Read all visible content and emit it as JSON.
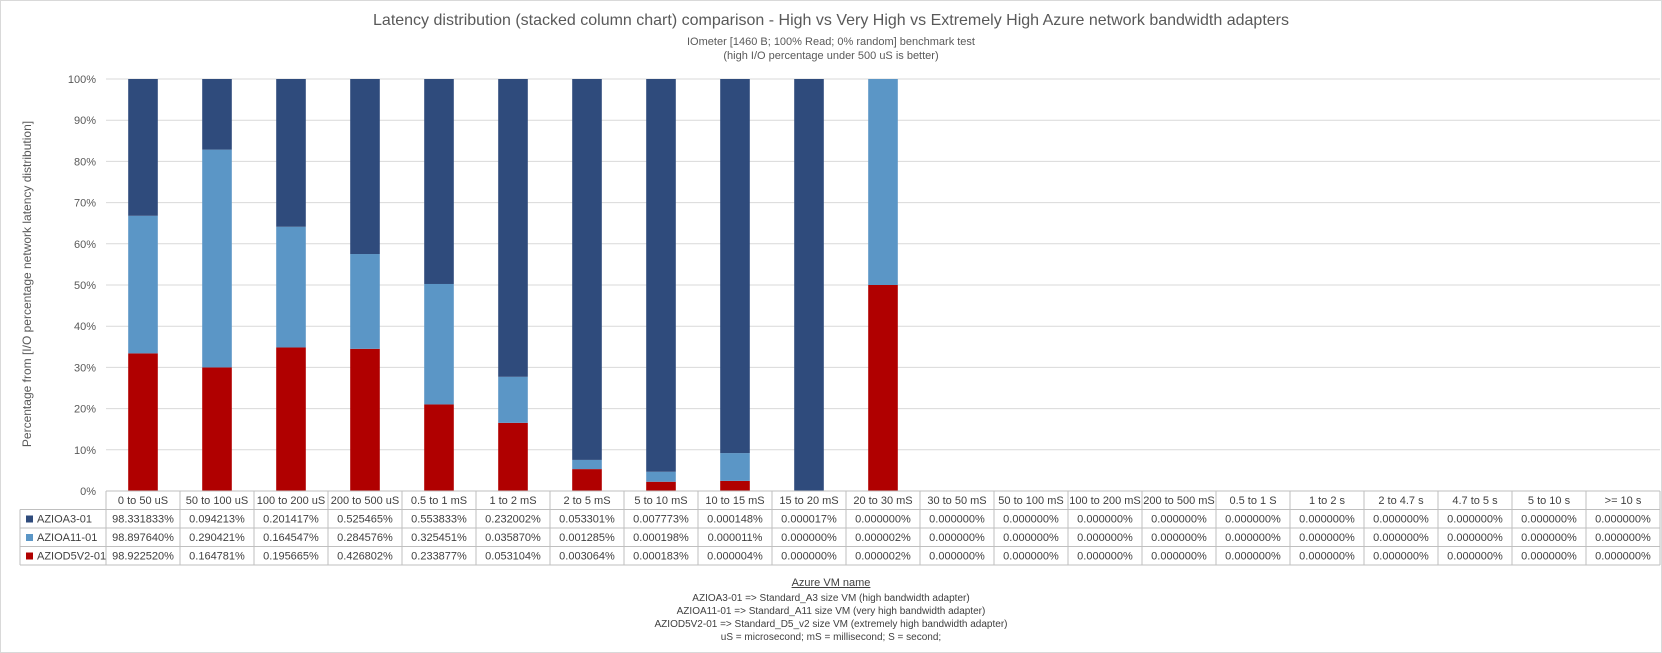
{
  "chart_data": {
    "type": "bar",
    "stacked": true,
    "normalized": "100%",
    "title": "Latency distribution (stacked column chart) comparison - High vs Very High vs Extremely High Azure network bandwidth adapters",
    "subtitle_lines": [
      "IOmeter [1460 B; 100% Read; 0% random] benchmark test",
      "(high I/O percentage under 500 uS is better)"
    ],
    "ylabel": "Percentage from [I/O percentage network latency distribution]",
    "xlabel": "Azure VM name",
    "ylim": [
      0,
      100
    ],
    "yticks": [
      "0%",
      "10%",
      "20%",
      "30%",
      "40%",
      "50%",
      "60%",
      "70%",
      "80%",
      "90%",
      "100%"
    ],
    "categories": [
      "0 to 50 uS",
      "50 to 100 uS",
      "100 to 200 uS",
      "200 to 500 uS",
      "0.5 to 1 mS",
      "1 to 2 mS",
      "2 to 5 mS",
      "5 to 10 mS",
      "10 to 15 mS",
      "15 to 20 mS",
      "20 to 30 mS",
      "30 to 50 mS",
      "50 to 100 mS",
      "100 to 200 mS",
      "200 to 500 mS",
      "0.5 to 1 S",
      "1 to 2 s",
      "2 to 4.7 s",
      "4.7 to 5 s",
      "5 to 10 s",
      ">= 10 s"
    ],
    "series": [
      {
        "name": "AZIOA3-01",
        "color": "#2f4b7c",
        "values": [
          98.331833,
          0.094213,
          0.201417,
          0.525465,
          0.553833,
          0.232002,
          0.053301,
          0.007773,
          0.000148,
          1.7e-05,
          0.0,
          0.0,
          0.0,
          0.0,
          0.0,
          0.0,
          0.0,
          0.0,
          0.0,
          0.0,
          0.0
        ],
        "labels": [
          "98.331833%",
          "0.094213%",
          "0.201417%",
          "0.525465%",
          "0.553833%",
          "0.232002%",
          "0.053301%",
          "0.007773%",
          "0.000148%",
          "0.000017%",
          "0.000000%",
          "0.000000%",
          "0.000000%",
          "0.000000%",
          "0.000000%",
          "0.000000%",
          "0.000000%",
          "0.000000%",
          "0.000000%",
          "0.000000%",
          "0.000000%"
        ]
      },
      {
        "name": "AZIOA11-01",
        "color": "#5b96c6",
        "values": [
          98.89764,
          0.290421,
          0.164547,
          0.284576,
          0.325451,
          0.03587,
          0.001285,
          0.000198,
          1.1e-05,
          0.0,
          2e-06,
          0.0,
          0.0,
          0.0,
          0.0,
          0.0,
          0.0,
          0.0,
          0.0,
          0.0,
          0.0
        ],
        "labels": [
          "98.897640%",
          "0.290421%",
          "0.164547%",
          "0.284576%",
          "0.325451%",
          "0.035870%",
          "0.001285%",
          "0.000198%",
          "0.000011%",
          "0.000000%",
          "0.000002%",
          "0.000000%",
          "0.000000%",
          "0.000000%",
          "0.000000%",
          "0.000000%",
          "0.000000%",
          "0.000000%",
          "0.000000%",
          "0.000000%",
          "0.000000%"
        ]
      },
      {
        "name": "AZIOD5V2-01",
        "color": "#b00000",
        "values": [
          98.92252,
          0.164781,
          0.195665,
          0.426802,
          0.233877,
          0.053104,
          0.003064,
          0.000183,
          4e-06,
          0.0,
          2e-06,
          0.0,
          0.0,
          0.0,
          0.0,
          0.0,
          0.0,
          0.0,
          0.0,
          0.0,
          0.0
        ],
        "labels": [
          "98.922520%",
          "0.164781%",
          "0.195665%",
          "0.426802%",
          "0.233877%",
          "0.053104%",
          "0.003064%",
          "0.000183%",
          "0.000004%",
          "0.000000%",
          "0.000002%",
          "0.000000%",
          "0.000000%",
          "0.000000%",
          "0.000000%",
          "0.000000%",
          "0.000000%",
          "0.000000%",
          "0.000000%",
          "0.000000%",
          "0.000000%"
        ]
      }
    ],
    "stack_order_bottom_to_top": [
      "AZIOD5V2-01",
      "AZIOA11-01",
      "AZIOA3-01"
    ],
    "legend": "data-table"
  },
  "footnotes": [
    "AZIOA3-01 => Standard_A3 size VM (high bandwidth adapter)",
    "AZIOA11-01 => Standard_A11 size VM (very high bandwidth adapter)",
    "AZIOD5V2-01 => Standard_D5_v2 size VM (extremely high bandwidth adapter)",
    "uS = microsecond; mS = millisecond; S = second;"
  ]
}
